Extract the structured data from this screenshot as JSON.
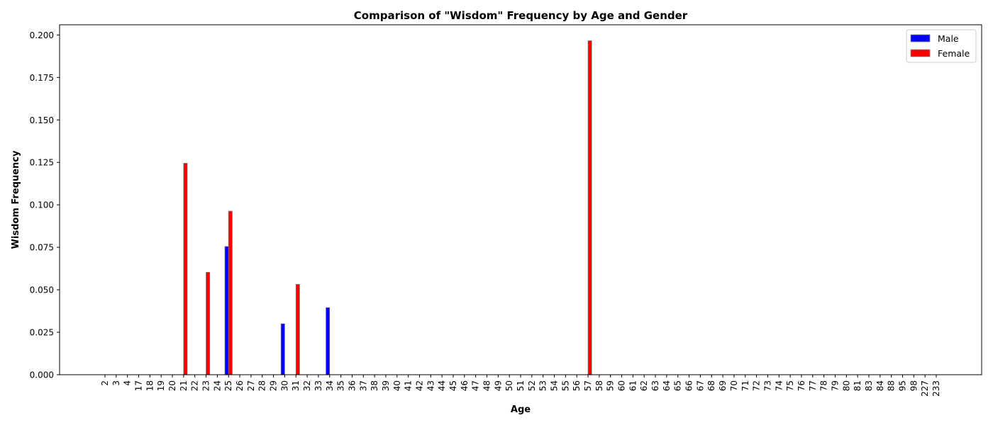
{
  "chart_data": {
    "type": "bar",
    "title": "Comparison of \"Wisdom\" Frequency by Age and Gender",
    "xlabel": "Age",
    "ylabel": "Wisdom Frequency",
    "ylim": [
      0,
      0.206
    ],
    "yticks": [
      "0.000",
      "0.025",
      "0.050",
      "0.075",
      "0.100",
      "0.125",
      "0.150",
      "0.175",
      "0.200"
    ],
    "grid": false,
    "legend_position": "top-right",
    "categories": [
      "2",
      "3",
      "4",
      "17",
      "18",
      "19",
      "20",
      "21",
      "22",
      "23",
      "24",
      "25",
      "26",
      "27",
      "28",
      "29",
      "30",
      "31",
      "32",
      "33",
      "34",
      "35",
      "36",
      "37",
      "38",
      "39",
      "40",
      "41",
      "42",
      "43",
      "44",
      "45",
      "46",
      "47",
      "48",
      "49",
      "50",
      "51",
      "52",
      "53",
      "54",
      "55",
      "56",
      "57",
      "58",
      "59",
      "60",
      "61",
      "62",
      "63",
      "64",
      "65",
      "66",
      "67",
      "68",
      "69",
      "70",
      "71",
      "72",
      "73",
      "74",
      "75",
      "76",
      "77",
      "78",
      "79",
      "80",
      "81",
      "83",
      "84",
      "88",
      "95",
      "98",
      "227",
      "233"
    ],
    "series": [
      {
        "name": "Male",
        "color": "#0000ff",
        "values": [
          0,
          0,
          0,
          0,
          0,
          0,
          0,
          0,
          0,
          0,
          0,
          0.0755,
          0,
          0,
          0,
          0,
          0.03,
          0,
          0,
          0,
          0.0395,
          0,
          0,
          0,
          0,
          0,
          0,
          0,
          0,
          0,
          0,
          0,
          0,
          0,
          0,
          0,
          0,
          0,
          0,
          0,
          0,
          0,
          0,
          0,
          0,
          0,
          0,
          0,
          0,
          0,
          0,
          0,
          0,
          0,
          0,
          0,
          0,
          0,
          0,
          0,
          0,
          0,
          0,
          0,
          0,
          0,
          0,
          0,
          0,
          0,
          0,
          0,
          0,
          0,
          0
        ]
      },
      {
        "name": "Female",
        "color": "#ff0000",
        "values": [
          0,
          0,
          0,
          0,
          0,
          0,
          0,
          0.1245,
          0,
          0.0603,
          0,
          0.0963,
          0,
          0,
          0,
          0,
          0,
          0.0532,
          0,
          0,
          0,
          0,
          0,
          0,
          0,
          0,
          0,
          0,
          0,
          0,
          0,
          0,
          0,
          0,
          0,
          0,
          0,
          0,
          0,
          0,
          0,
          0,
          0,
          0.1966,
          0,
          0,
          0,
          0,
          0,
          0,
          0,
          0,
          0,
          0,
          0,
          0,
          0,
          0,
          0,
          0,
          0,
          0,
          0,
          0,
          0,
          0,
          0,
          0,
          0,
          0,
          0,
          0,
          0,
          0,
          0
        ]
      }
    ]
  }
}
